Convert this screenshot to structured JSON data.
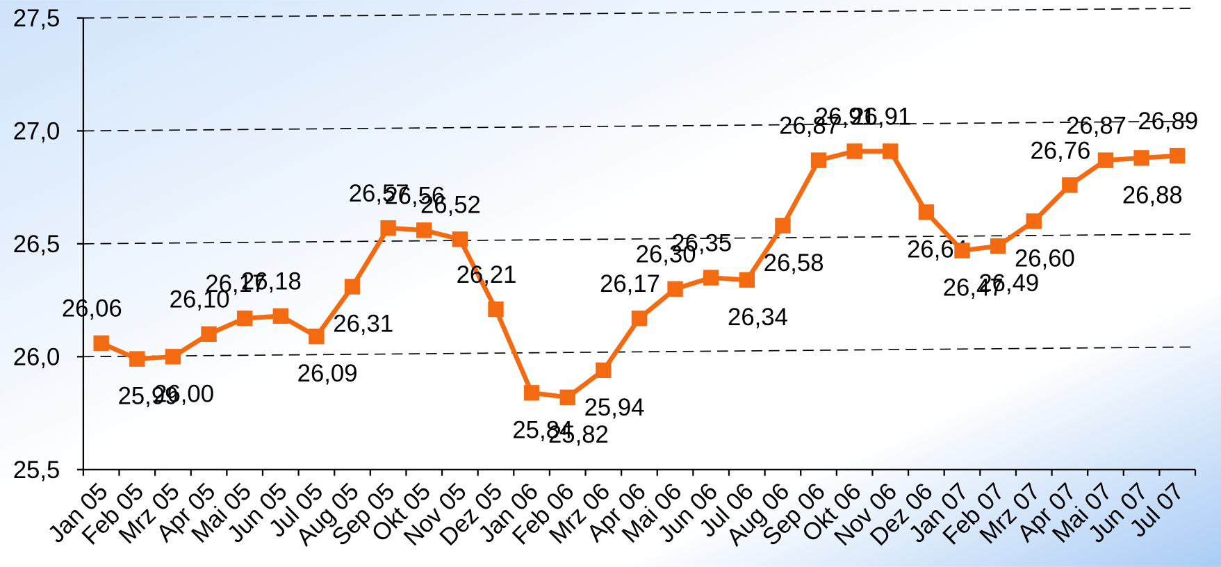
{
  "chart_data": {
    "type": "line",
    "categories": [
      "Jan 05",
      "Feb 05",
      "Mrz 05",
      "Apr 05",
      "Mai 05",
      "Jun 05",
      "Jul 05",
      "Aug 05",
      "Sep 05",
      "Okt 05",
      "Nov 05",
      "Dez 05",
      "Jan 06",
      "Feb 06",
      "Mrz 06",
      "Apr 06",
      "Mai 06",
      "Jun 06",
      "Jul 06",
      "Aug 06",
      "Sep 06",
      "Okt 06",
      "Nov 06",
      "Dez 06",
      "Jan 07",
      "Feb 07",
      "Mrz 07",
      "Apr 07",
      "Mai 07",
      "Jun 07",
      "Jul 07"
    ],
    "series": [
      {
        "color": "#f36a10",
        "values": [
          26.06,
          25.99,
          26.0,
          26.1,
          26.17,
          26.18,
          26.09,
          26.31,
          26.57,
          26.56,
          26.52,
          26.21,
          25.84,
          25.82,
          25.94,
          26.17,
          26.3,
          26.35,
          26.34,
          26.58,
          26.87,
          26.91,
          26.91,
          26.64,
          26.47,
          26.49,
          26.6,
          26.76,
          26.87,
          26.88,
          26.89
        ],
        "value_labels": [
          "26,06",
          "25,99",
          "26,00",
          "26,10",
          "26,17",
          "26,18",
          "26,09",
          "26,31",
          "26,57",
          "26,56",
          "26,52",
          "26,21",
          "25,84",
          "25,82",
          "25,94",
          "26,17",
          "26,30",
          "26,35",
          "26,34",
          "26,58",
          "26,87",
          "26,91",
          "26,91",
          "26,64",
          "26,47",
          "26,49",
          "26,60",
          "26,76",
          "26,87",
          "26,88",
          "26,89"
        ]
      }
    ],
    "ylim": [
      25.5,
      27.5
    ],
    "yticks": [
      {
        "value": 25.5,
        "label": "25,5"
      },
      {
        "value": 26.0,
        "label": "26,0"
      },
      {
        "value": 26.5,
        "label": "26,5"
      },
      {
        "value": 27.0,
        "label": "27,0"
      },
      {
        "value": 27.5,
        "label": "27,5"
      }
    ],
    "grid": true
  }
}
